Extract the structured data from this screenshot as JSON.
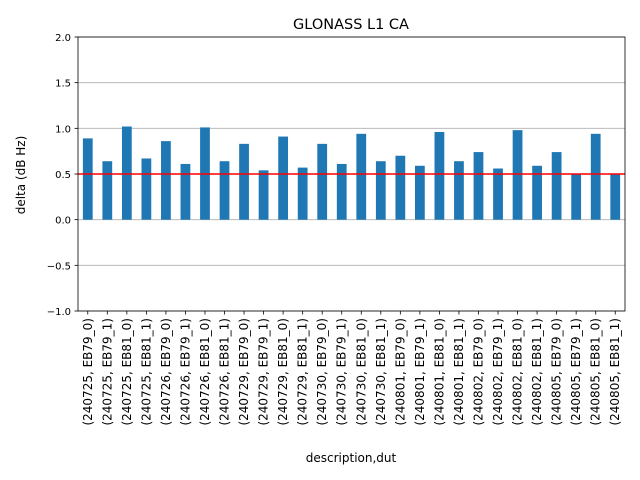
{
  "chart_data": {
    "type": "bar",
    "title": "GLONASS L1 CA",
    "xlabel": "description,dut",
    "ylabel": "delta (dB Hz)",
    "ylim": [
      -1.0,
      2.0
    ],
    "yticks": [
      -1.0,
      -0.5,
      0.0,
      0.5,
      1.0,
      1.5,
      2.0
    ],
    "ytick_labels": [
      "−1.0",
      "−0.5",
      "0.0",
      "0.5",
      "1.0",
      "1.5",
      "2.0"
    ],
    "grid": "horizontal",
    "reference_line": 0.5,
    "bar_color": "#1f77b4",
    "reference_color": "#ff0000",
    "categories": [
      "(240725, EB79_0)",
      "(240725, EB79_1)",
      "(240725, EB81_0)",
      "(240725, EB81_1)",
      "(240726, EB79_0)",
      "(240726, EB79_1)",
      "(240726, EB81_0)",
      "(240726, EB81_1)",
      "(240729, EB79_0)",
      "(240729, EB79_1)",
      "(240729, EB81_0)",
      "(240729, EB81_1)",
      "(240730, EB79_0)",
      "(240730, EB79_1)",
      "(240730, EB81_0)",
      "(240730, EB81_1)",
      "(240801, EB79_0)",
      "(240801, EB79_1)",
      "(240801, EB81_0)",
      "(240801, EB81_1)",
      "(240802, EB79_0)",
      "(240802, EB79_1)",
      "(240802, EB81_0)",
      "(240802, EB81_1)",
      "(240805, EB79_0)",
      "(240805, EB79_1)",
      "(240805, EB81_0)",
      "(240805, EB81_1)"
    ],
    "values": [
      0.89,
      0.64,
      1.02,
      0.67,
      0.86,
      0.61,
      1.01,
      0.64,
      0.83,
      0.54,
      0.91,
      0.57,
      0.83,
      0.61,
      0.94,
      0.64,
      0.7,
      0.59,
      0.96,
      0.64,
      0.74,
      0.56,
      0.98,
      0.59,
      0.74,
      0.5,
      0.94,
      0.5
    ]
  }
}
